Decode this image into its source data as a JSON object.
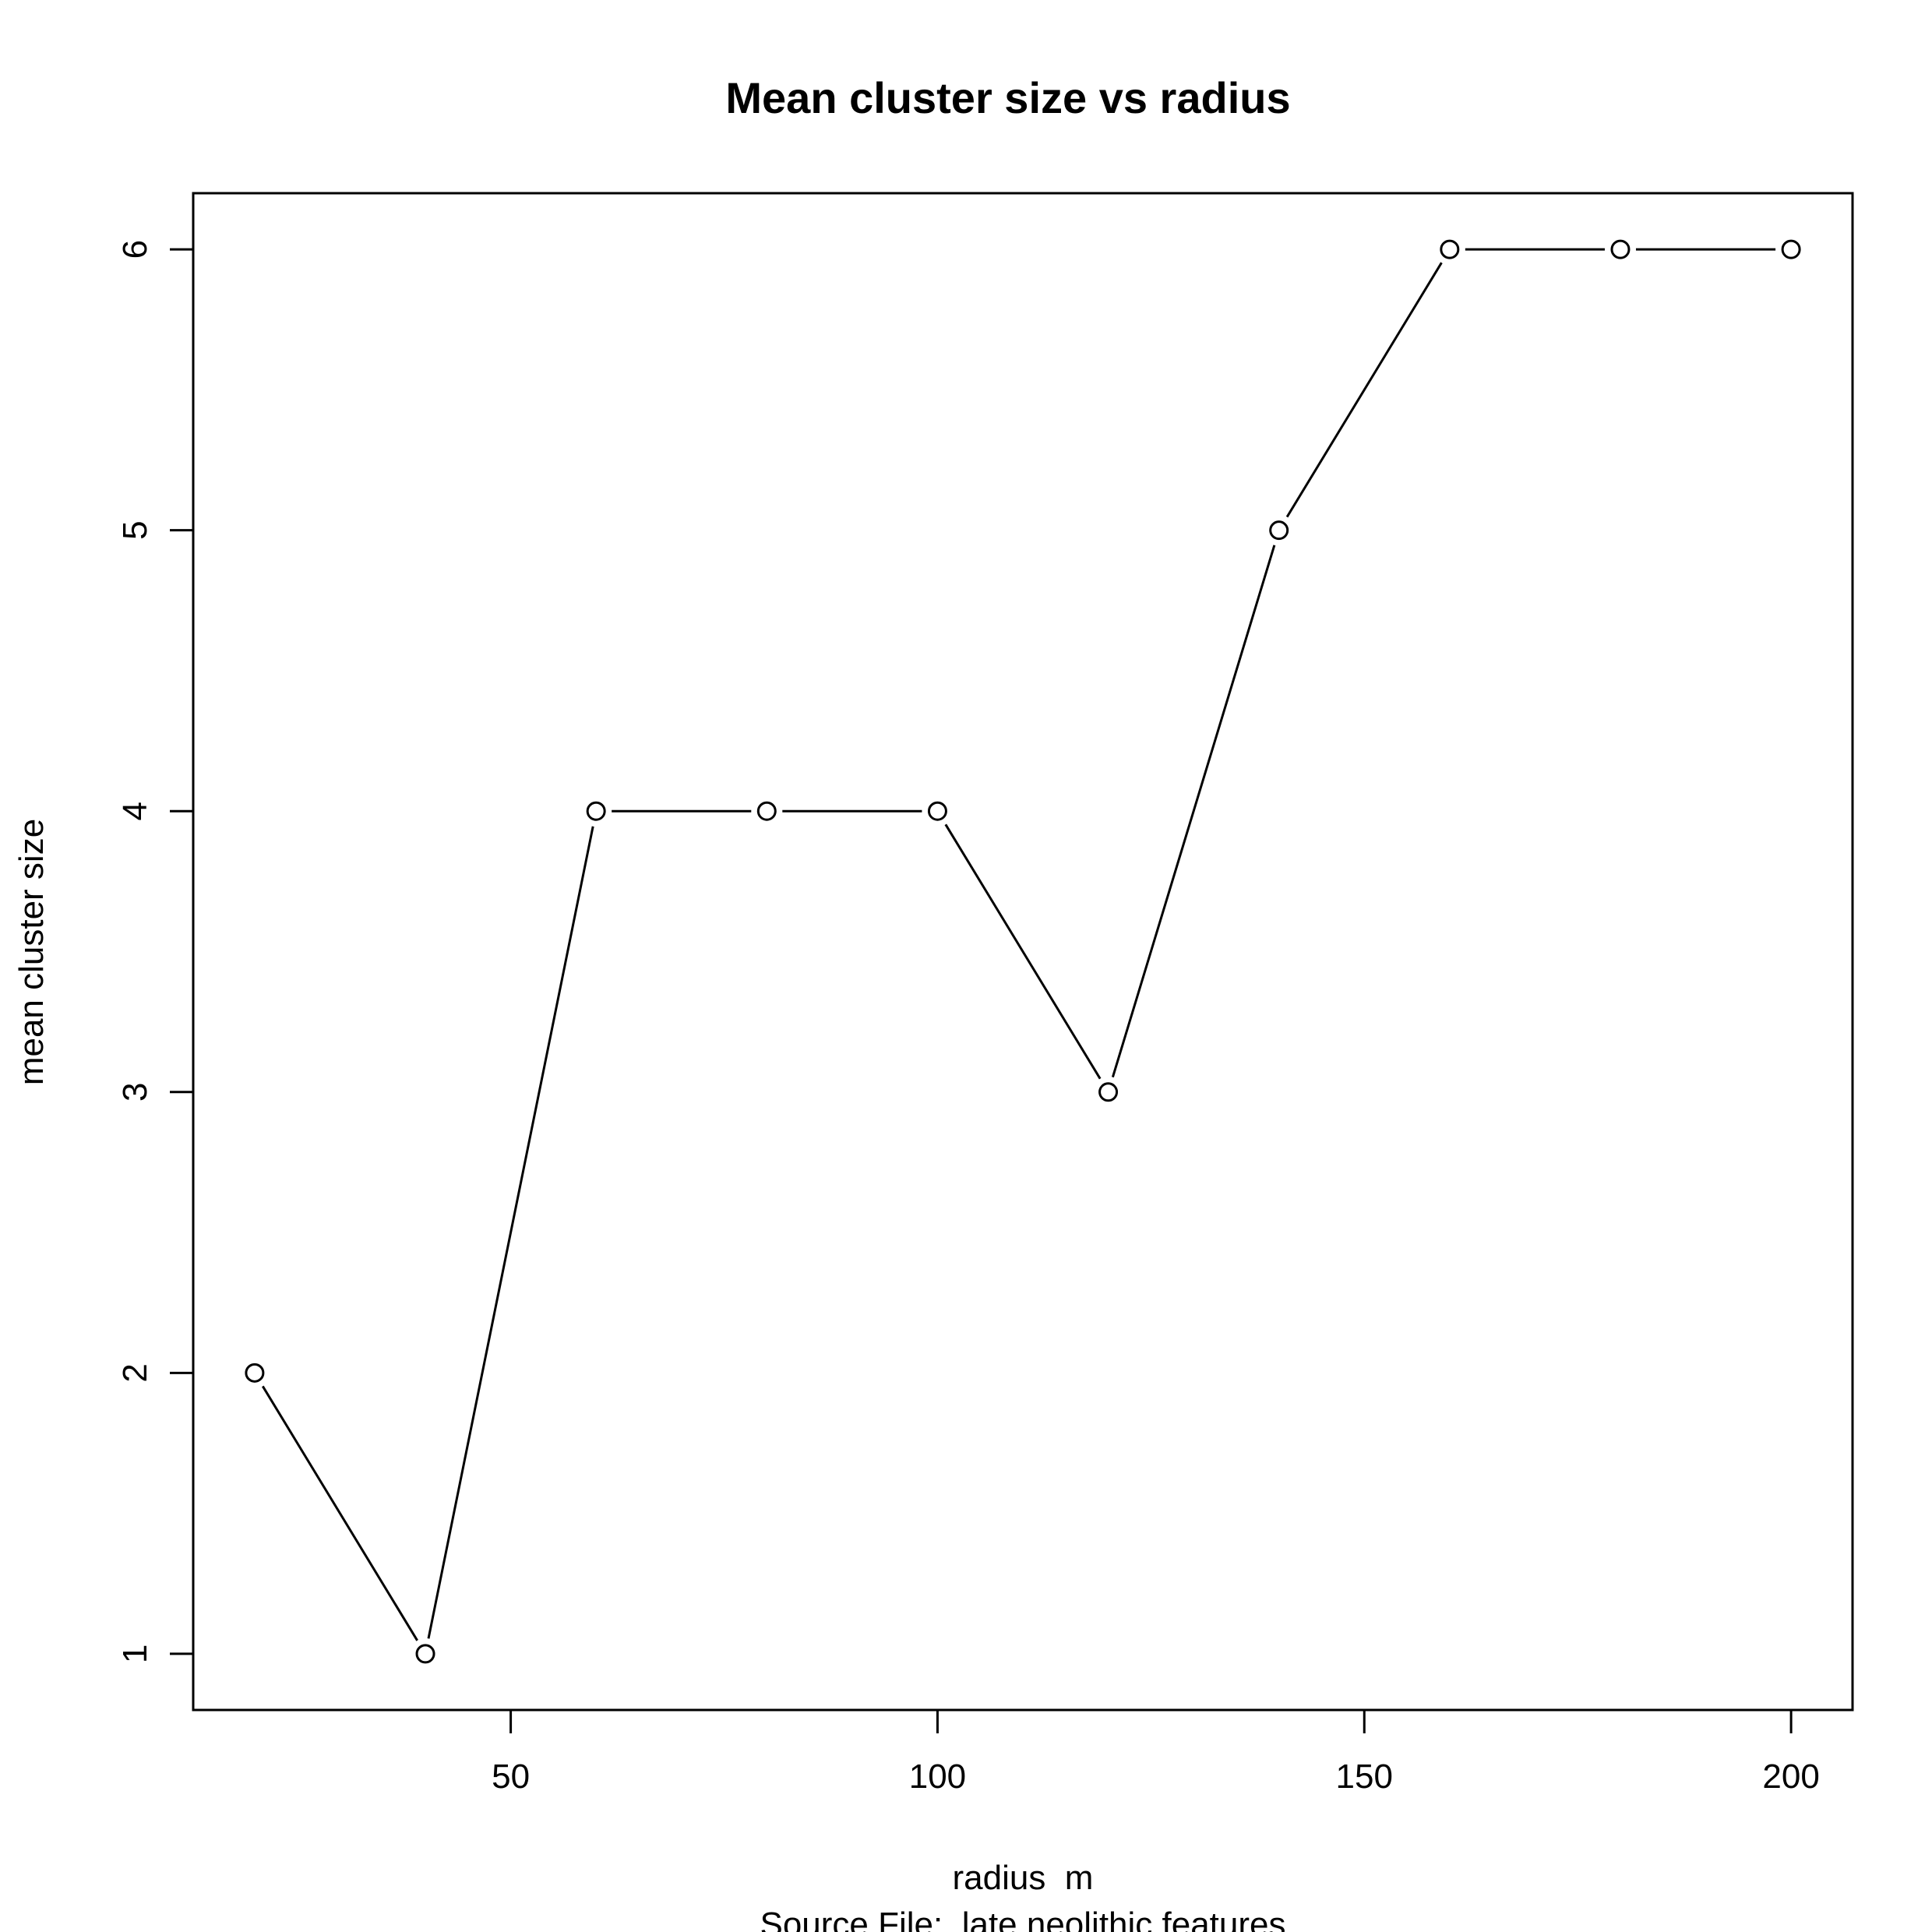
{
  "chart_data": {
    "type": "line",
    "title": "Mean cluster size vs radius",
    "xlabel": "radius  m",
    "sublabel": "Source File:  late neolithic features",
    "ylabel": "mean cluster size",
    "x": [
      20,
      40,
      60,
      80,
      100,
      120,
      140,
      160,
      180,
      200
    ],
    "y": [
      2,
      1,
      4,
      4,
      4,
      3,
      5,
      6,
      6,
      6
    ],
    "xlim": [
      12.8,
      207.2
    ],
    "ylim": [
      0.8,
      6.2
    ],
    "x_ticks": [
      50,
      100,
      150,
      200
    ],
    "y_ticks": [
      1,
      2,
      3,
      4,
      5,
      6
    ],
    "x_tick_labels": [
      "50",
      "100",
      "150",
      "200"
    ],
    "y_tick_labels": [
      "1",
      "2",
      "3",
      "4",
      "5",
      "6"
    ],
    "marker": "open-circle",
    "grid": false,
    "legend": "none",
    "colors": {
      "line": "#000000",
      "background": "#ffffff"
    }
  }
}
